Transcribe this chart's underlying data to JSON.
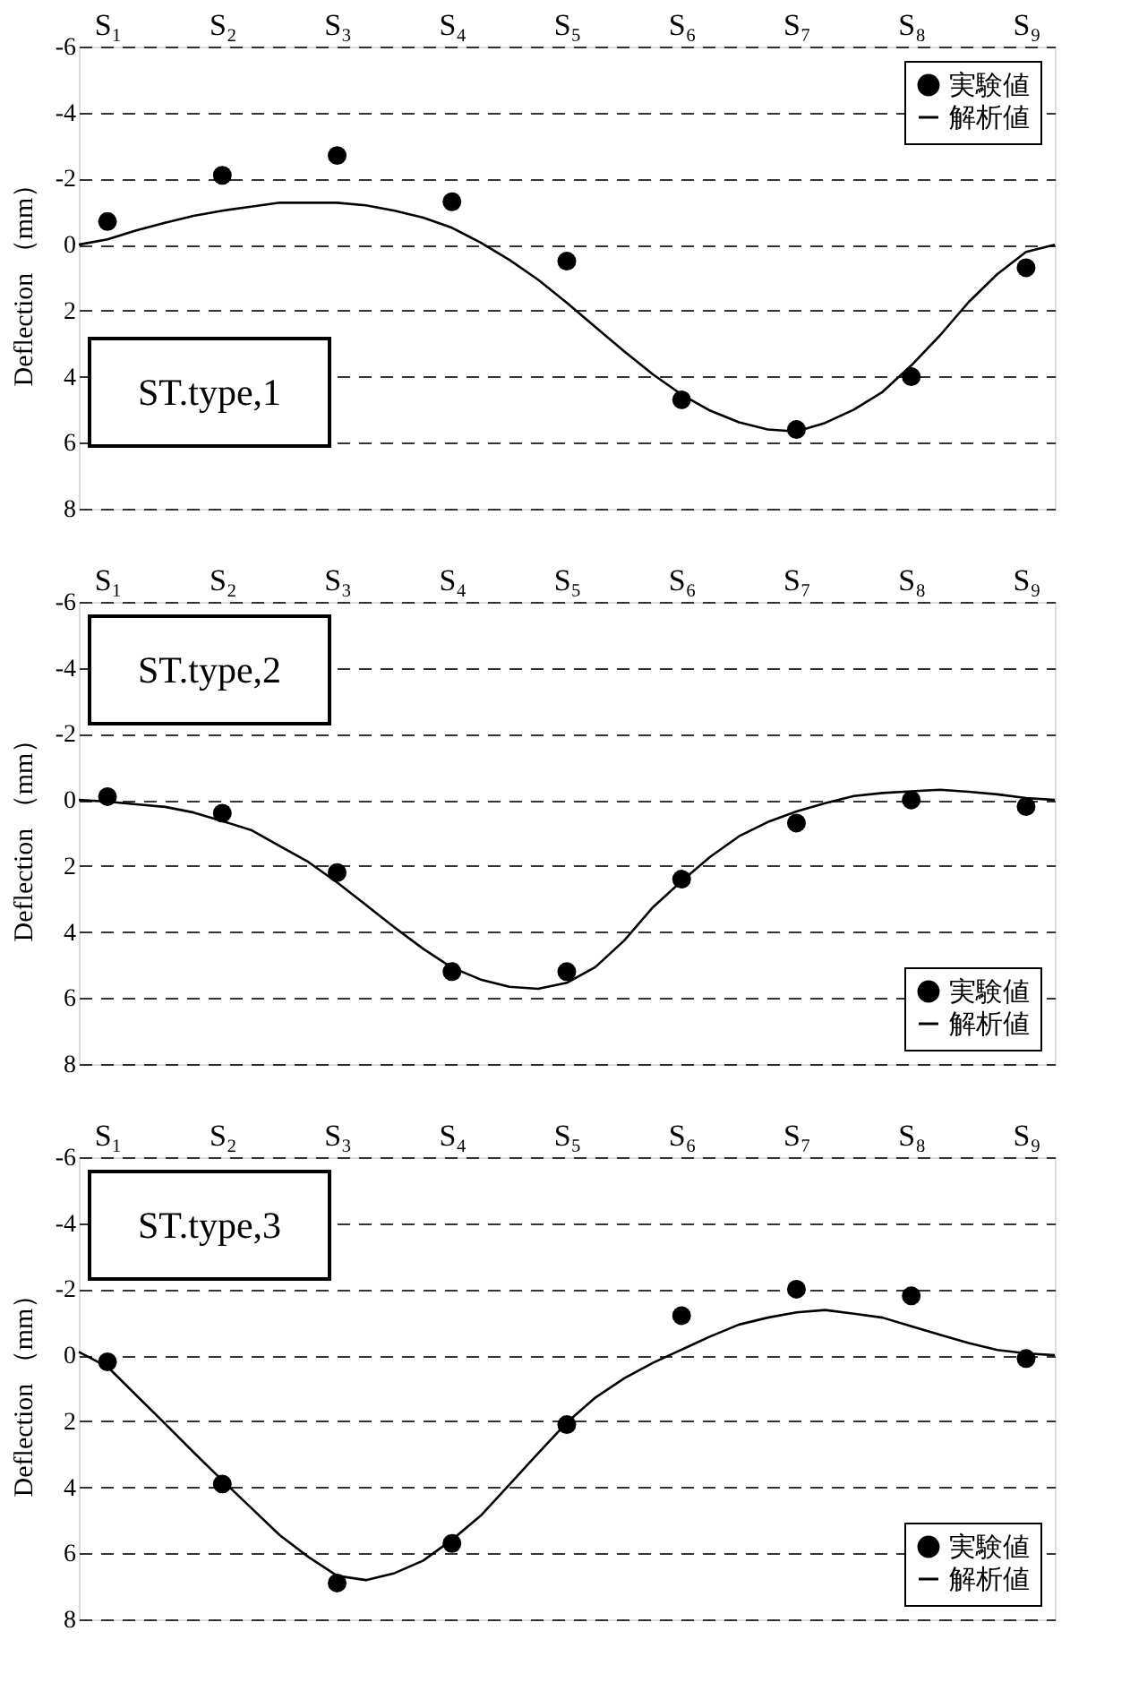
{
  "chart_data": [
    {
      "type": "scatter",
      "ylabel": "Deflection （mm）",
      "annotations": [
        "ST.type,1"
      ],
      "legend": "top right",
      "grid": "y",
      "categories": [
        null,
        "S₁",
        null,
        null,
        null,
        "S₂",
        null,
        null,
        null,
        "S₃",
        null,
        null,
        null,
        "S₄",
        null,
        null,
        null,
        "S₅",
        null,
        null,
        null,
        "S₆",
        null,
        null,
        null,
        "S₇",
        null,
        null,
        null,
        "S₈",
        null,
        null,
        null,
        "S₉",
        null
      ],
      "ylim": [
        8,
        -6
      ],
      "yticks": [
        -6,
        -4,
        -2,
        0,
        2,
        4,
        6,
        8
      ],
      "series": [
        {
          "name": "実験値",
          "type": "scatter",
          "marker": "circle",
          "color": "#000000",
          "values": [
            null,
            -0.7,
            null,
            null,
            null,
            -2.1,
            null,
            null,
            null,
            -2.7,
            null,
            null,
            null,
            -1.3,
            null,
            null,
            null,
            0.5,
            null,
            null,
            null,
            4.7,
            null,
            null,
            null,
            5.6,
            null,
            null,
            null,
            4.0,
            null,
            null,
            null,
            0.7,
            null
          ]
        },
        {
          "name": "解析値",
          "type": "line",
          "color": "#000000",
          "values": [
            0,
            -0.16,
            -0.43,
            -0.66,
            -0.87,
            -1.03,
            -1.15,
            -1.27,
            -1.27,
            -1.27,
            -1.19,
            -1.03,
            -0.82,
            -0.51,
            -0.06,
            0.46,
            1.06,
            1.76,
            2.5,
            3.23,
            3.93,
            4.54,
            5.03,
            5.38,
            5.6,
            5.66,
            5.4,
            5.0,
            4.46,
            3.66,
            2.75,
            1.74,
            0.89,
            0.22,
            0
          ]
        }
      ]
    },
    {
      "type": "scatter",
      "ylabel": "Deflection （mm）",
      "annotations": [
        "ST.type,2"
      ],
      "legend": "bottom right",
      "grid": "y",
      "categories": [
        null,
        "S₁",
        null,
        null,
        null,
        "S₂",
        null,
        null,
        null,
        "S₃",
        null,
        null,
        null,
        "S₄",
        null,
        null,
        null,
        "S₅",
        null,
        null,
        null,
        "S₆",
        null,
        null,
        null,
        "S₇",
        null,
        null,
        null,
        "S₈",
        null,
        null,
        null,
        "S₉",
        null
      ],
      "ylim": [
        8,
        -6
      ],
      "yticks": [
        -6,
        -4,
        -2,
        0,
        2,
        4,
        6,
        8
      ],
      "series": [
        {
          "name": "実験値",
          "type": "scatter",
          "marker": "circle",
          "color": "#000000",
          "values": [
            null,
            -0.1,
            null,
            null,
            null,
            0.4,
            null,
            null,
            null,
            2.2,
            null,
            null,
            null,
            5.2,
            null,
            null,
            null,
            5.2,
            null,
            null,
            null,
            2.4,
            null,
            null,
            null,
            0.7,
            null,
            null,
            null,
            0,
            null,
            null,
            null,
            0.2,
            null
          ]
        },
        {
          "name": "解析値",
          "type": "line",
          "color": "#000000",
          "values": [
            0,
            0.05,
            0.13,
            0.21,
            0.38,
            0.64,
            0.91,
            1.4,
            1.88,
            2.5,
            3.18,
            3.86,
            4.51,
            5.08,
            5.44,
            5.66,
            5.72,
            5.54,
            5.06,
            4.26,
            3.25,
            2.46,
            1.72,
            1.1,
            0.67,
            0.35,
            0.1,
            -0.12,
            -0.21,
            -0.26,
            -0.31,
            -0.25,
            -0.17,
            -0.06,
            0
          ]
        }
      ]
    },
    {
      "type": "scatter",
      "ylabel": "Deflection （mm）",
      "annotations": [
        "ST.type,3"
      ],
      "legend": "bottom right",
      "grid": "y",
      "categories": [
        null,
        "S₁",
        null,
        null,
        null,
        "S₂",
        null,
        null,
        null,
        "S₃",
        null,
        null,
        null,
        "S₄",
        null,
        null,
        null,
        "S₅",
        null,
        null,
        null,
        "S₆",
        null,
        null,
        null,
        "S₇",
        null,
        null,
        null,
        "S₈",
        null,
        null,
        null,
        "S₉",
        null
      ],
      "ylim": [
        8,
        -6
      ],
      "yticks": [
        -6,
        -4,
        -2,
        0,
        2,
        4,
        6,
        8
      ],
      "series": [
        {
          "name": "実験値",
          "type": "scatter",
          "marker": "circle",
          "color": "#000000",
          "values": [
            null,
            0.2,
            null,
            null,
            null,
            3.9,
            null,
            null,
            null,
            6.9,
            null,
            null,
            null,
            5.7,
            null,
            null,
            null,
            2.1,
            null,
            null,
            null,
            -1.2,
            null,
            null,
            null,
            -2.0,
            null,
            null,
            null,
            -1.8,
            null,
            null,
            null,
            0.1,
            null
          ]
        },
        {
          "name": "解析値",
          "type": "line",
          "color": "#000000",
          "values": [
            -0.1,
            0.35,
            1.21,
            2.07,
            2.94,
            3.79,
            4.62,
            5.45,
            6.11,
            6.68,
            6.81,
            6.6,
            6.22,
            5.59,
            4.86,
            3.92,
            2.97,
            2.04,
            1.28,
            0.7,
            0.23,
            -0.17,
            -0.57,
            -0.93,
            -1.14,
            -1.3,
            -1.37,
            -1.26,
            -1.14,
            -0.88,
            -0.62,
            -0.37,
            -0.16,
            -0.06,
            0
          ]
        }
      ]
    }
  ]
}
